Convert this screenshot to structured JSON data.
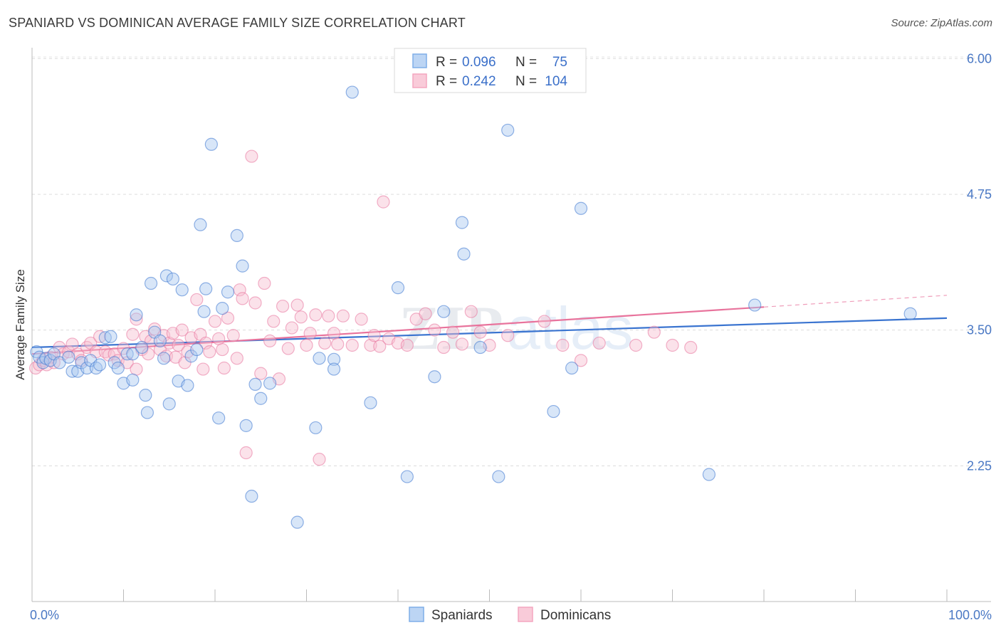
{
  "header": {
    "title": "SPANIARD VS DOMINICAN AVERAGE FAMILY SIZE CORRELATION CHART",
    "source": "Source: ZipAtlas.com"
  },
  "watermark": {
    "zip": "ZIP",
    "atlas": "atlas"
  },
  "legend": {
    "rows": [
      {
        "r_label": "R =",
        "r_value": "0.096",
        "n_label": "N =",
        "n_value": "75",
        "color": "#7eaee8"
      },
      {
        "r_label": "R =",
        "r_value": "0.242",
        "n_label": "N =",
        "n_value": "104",
        "color": "#f4a6bf"
      }
    ]
  },
  "bottom_legend": [
    {
      "label": "Spaniards",
      "color": "#7eaee8"
    },
    {
      "label": "Dominicans",
      "color": "#f4a6bf"
    }
  ],
  "chart_data": {
    "type": "scatter",
    "title": "SPANIARD VS DOMINICAN AVERAGE FAMILY SIZE CORRELATION CHART",
    "xlabel": "",
    "ylabel": "Average Family Size",
    "xlim": [
      0,
      100
    ],
    "ylim": [
      1.0,
      6.1
    ],
    "x_tick_labels": [
      "0.0%",
      "100.0%"
    ],
    "y_ticks": [
      2.25,
      3.5,
      4.75,
      6.0
    ],
    "y_tick_labels": [
      "2.25",
      "3.50",
      "4.75",
      "6.00"
    ],
    "grid": true,
    "legend_position": "top-center",
    "series": [
      {
        "name": "Spaniards",
        "color": "#3a74d0",
        "fill": "#a9c8ef",
        "trend": {
          "x": [
            0,
            100
          ],
          "y": [
            3.34,
            3.61
          ],
          "dashed_from": null
        },
        "points": [
          [
            0.5,
            3.3
          ],
          [
            0.8,
            3.25
          ],
          [
            1.2,
            3.2
          ],
          [
            1.5,
            3.24
          ],
          [
            2,
            3.22
          ],
          [
            2.4,
            3.28
          ],
          [
            3,
            3.2
          ],
          [
            4,
            3.25
          ],
          [
            4.4,
            3.12
          ],
          [
            5,
            3.12
          ],
          [
            5.4,
            3.2
          ],
          [
            6,
            3.15
          ],
          [
            6.4,
            3.22
          ],
          [
            7,
            3.15
          ],
          [
            7.4,
            3.18
          ],
          [
            8,
            3.43
          ],
          [
            8.6,
            3.44
          ],
          [
            9,
            3.2
          ],
          [
            9.4,
            3.15
          ],
          [
            10,
            3.01
          ],
          [
            10.4,
            3.28
          ],
          [
            11,
            3.04
          ],
          [
            11,
            3.28
          ],
          [
            11.4,
            3.64
          ],
          [
            12,
            3.34
          ],
          [
            12.4,
            2.9
          ],
          [
            12.6,
            2.74
          ],
          [
            13,
            3.93
          ],
          [
            13.4,
            3.48
          ],
          [
            14,
            3.4
          ],
          [
            14.4,
            3.24
          ],
          [
            14.7,
            4.0
          ],
          [
            15,
            2.82
          ],
          [
            15.4,
            3.97
          ],
          [
            16,
            3.03
          ],
          [
            16.4,
            3.87
          ],
          [
            17,
            2.99
          ],
          [
            17.4,
            3.26
          ],
          [
            18,
            3.32
          ],
          [
            18.4,
            4.47
          ],
          [
            18.8,
            3.67
          ],
          [
            19,
            3.88
          ],
          [
            19.6,
            5.21
          ],
          [
            20.4,
            2.69
          ],
          [
            20.8,
            3.7
          ],
          [
            21.4,
            3.85
          ],
          [
            22.4,
            4.37
          ],
          [
            23,
            4.09
          ],
          [
            23.4,
            2.62
          ],
          [
            24,
            1.97
          ],
          [
            24.4,
            3.0
          ],
          [
            25,
            2.87
          ],
          [
            26,
            3.01
          ],
          [
            29,
            1.73
          ],
          [
            31,
            2.6
          ],
          [
            31.4,
            3.24
          ],
          [
            33,
            3.23
          ],
          [
            33,
            3.14
          ],
          [
            35,
            5.69
          ],
          [
            37,
            2.83
          ],
          [
            40,
            3.89
          ],
          [
            41,
            2.15
          ],
          [
            44,
            3.07
          ],
          [
            45,
            3.67
          ],
          [
            47,
            4.49
          ],
          [
            47.2,
            4.2
          ],
          [
            49,
            3.34
          ],
          [
            51,
            2.15
          ],
          [
            52,
            5.34
          ],
          [
            57,
            2.75
          ],
          [
            59,
            3.15
          ],
          [
            60,
            4.62
          ],
          [
            74,
            2.17
          ],
          [
            79,
            3.73
          ],
          [
            96,
            3.65
          ]
        ]
      },
      {
        "name": "Dominicans",
        "color": "#e8739c",
        "fill": "#f6bfd1",
        "trend": {
          "x": [
            0,
            100
          ],
          "y": [
            3.28,
            3.82
          ],
          "dashed_from": 80
        },
        "points": [
          [
            0.4,
            3.15
          ],
          [
            0.8,
            3.18
          ],
          [
            1.2,
            3.22
          ],
          [
            1.6,
            3.18
          ],
          [
            2,
            3.25
          ],
          [
            2.4,
            3.2
          ],
          [
            3,
            3.34
          ],
          [
            3.4,
            3.28
          ],
          [
            4,
            3.3
          ],
          [
            4.4,
            3.37
          ],
          [
            5,
            3.28
          ],
          [
            5.4,
            3.22
          ],
          [
            6,
            3.34
          ],
          [
            6.4,
            3.38
          ],
          [
            7,
            3.3
          ],
          [
            7.4,
            3.44
          ],
          [
            8,
            3.3
          ],
          [
            8.4,
            3.27
          ],
          [
            9,
            3.28
          ],
          [
            9.4,
            3.22
          ],
          [
            10,
            3.33
          ],
          [
            10.4,
            3.2
          ],
          [
            11,
            3.46
          ],
          [
            11.4,
            3.6
          ],
          [
            11.4,
            3.14
          ],
          [
            12,
            3.32
          ],
          [
            12.4,
            3.44
          ],
          [
            12.7,
            3.28
          ],
          [
            13,
            3.4
          ],
          [
            13.4,
            3.51
          ],
          [
            14,
            3.32
          ],
          [
            14.4,
            3.45
          ],
          [
            14.7,
            3.26
          ],
          [
            15,
            3.38
          ],
          [
            15.4,
            3.47
          ],
          [
            15.7,
            3.25
          ],
          [
            16,
            3.36
          ],
          [
            16.4,
            3.5
          ],
          [
            16.7,
            3.2
          ],
          [
            17,
            3.3
          ],
          [
            17.4,
            3.43
          ],
          [
            18,
            3.78
          ],
          [
            18.4,
            3.46
          ],
          [
            18.7,
            3.14
          ],
          [
            19,
            3.38
          ],
          [
            19.4,
            3.3
          ],
          [
            20,
            3.58
          ],
          [
            20.4,
            3.42
          ],
          [
            20.8,
            3.32
          ],
          [
            21,
            3.15
          ],
          [
            21.4,
            3.61
          ],
          [
            22,
            3.45
          ],
          [
            22.4,
            3.24
          ],
          [
            22.7,
            3.87
          ],
          [
            23,
            3.79
          ],
          [
            23.4,
            2.37
          ],
          [
            24,
            5.1
          ],
          [
            24.4,
            3.75
          ],
          [
            25,
            3.1
          ],
          [
            25.4,
            3.93
          ],
          [
            26,
            3.4
          ],
          [
            26.4,
            3.58
          ],
          [
            27,
            3.05
          ],
          [
            27.4,
            3.72
          ],
          [
            28,
            3.33
          ],
          [
            28.4,
            3.52
          ],
          [
            29,
            3.73
          ],
          [
            29.4,
            3.62
          ],
          [
            30,
            3.36
          ],
          [
            30.4,
            3.47
          ],
          [
            31,
            3.64
          ],
          [
            31.4,
            2.31
          ],
          [
            32,
            3.38
          ],
          [
            32.4,
            3.63
          ],
          [
            33,
            3.47
          ],
          [
            33.4,
            3.37
          ],
          [
            34,
            3.63
          ],
          [
            35,
            3.36
          ],
          [
            36,
            3.6
          ],
          [
            37,
            3.36
          ],
          [
            37.4,
            3.45
          ],
          [
            38,
            3.35
          ],
          [
            38.4,
            4.68
          ],
          [
            39,
            3.42
          ],
          [
            40,
            3.38
          ],
          [
            41,
            3.36
          ],
          [
            42,
            3.6
          ],
          [
            43,
            3.65
          ],
          [
            44,
            3.5
          ],
          [
            45,
            3.34
          ],
          [
            46,
            3.48
          ],
          [
            47,
            3.37
          ],
          [
            48,
            3.67
          ],
          [
            49,
            3.48
          ],
          [
            50,
            3.36
          ],
          [
            52,
            3.45
          ],
          [
            56,
            3.58
          ],
          [
            58,
            3.36
          ],
          [
            60,
            3.22
          ],
          [
            62,
            3.38
          ],
          [
            66,
            3.36
          ],
          [
            68,
            3.48
          ],
          [
            70,
            3.36
          ],
          [
            72,
            3.34
          ]
        ]
      }
    ]
  }
}
